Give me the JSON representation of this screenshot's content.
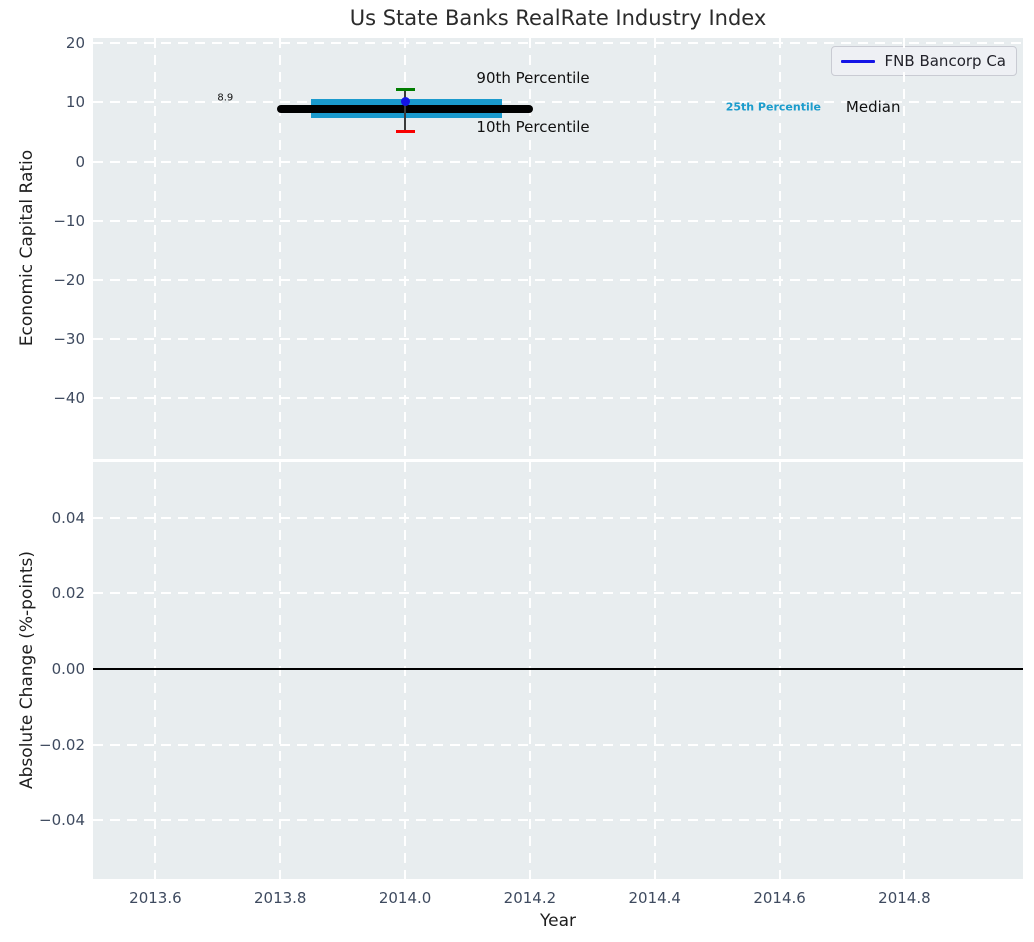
{
  "chart_data": [
    {
      "type": "line",
      "title": "Us State Banks RealRate Industry Index",
      "ylabel": "Economic Capital Ratio",
      "xlim": [
        2013.5,
        2014.99
      ],
      "ylim": [
        -50.3,
        20.9
      ],
      "yticks": [
        20,
        10,
        0,
        -10,
        -20,
        -30,
        -40
      ],
      "ytick_labels": [
        "20",
        "10",
        "0",
        "−10",
        "−20",
        "−30",
        "−40"
      ],
      "xgrid": [
        2013.6,
        2013.8,
        2014.0,
        2014.2,
        2014.4,
        2014.6,
        2014.8
      ],
      "grid": true,
      "legend": {
        "position": "upper right",
        "entries": [
          "FNB Bancorp Ca"
        ]
      },
      "median_line": {
        "label": "Median",
        "value": 8.9,
        "x_span": [
          2013.795,
          2014.205
        ],
        "color": "#000000"
      },
      "percentile_band": {
        "label": "25th Percentile",
        "x_span": [
          2013.85,
          2014.155
        ],
        "y_range": [
          7.3,
          10.6
        ],
        "color": "#1a9acd"
      },
      "error_bar": {
        "x": 2014.0,
        "line_color": "#3a3a3a",
        "high": {
          "label": "90th Percentile",
          "value": 12.2,
          "cap_color": "#007d00"
        },
        "low": {
          "label": "10th Percentile",
          "value": 5.1,
          "cap_color": "#f80000"
        }
      },
      "point": {
        "series": "FNB Bancorp Ca",
        "x": 2014.0,
        "y": 10.2,
        "color": "#1414e6"
      },
      "annotations": [
        {
          "text": "8.9",
          "x": 2013.712,
          "y": 10.8,
          "color": "#111111",
          "size": 10,
          "bold": false
        },
        {
          "text": "90th Percentile",
          "x": 2014.205,
          "y": 14.2,
          "color": "#111111",
          "size": 15,
          "bold": false
        },
        {
          "text": "10th Percentile",
          "x": 2014.205,
          "y": 5.9,
          "color": "#111111",
          "size": 15,
          "bold": false
        },
        {
          "text": "25th Percentile",
          "x": 2014.59,
          "y": 9.3,
          "color": "#1b9ccc",
          "size": 11,
          "bold": true
        },
        {
          "text": "Median",
          "x": 2014.75,
          "y": 9.3,
          "color": "#111111",
          "size": 15,
          "bold": false
        }
      ]
    },
    {
      "type": "line",
      "ylabel": "Absolute Change (%-points)",
      "xlabel": "Year",
      "xlim": [
        2013.5,
        2014.99
      ],
      "ylim": [
        -0.0556,
        0.0548
      ],
      "yticks": [
        0.04,
        0.02,
        0.0,
        -0.02,
        -0.04
      ],
      "ytick_labels": [
        "0.04",
        "0.02",
        "0.00",
        "−0.02",
        "−0.04"
      ],
      "xticks": [
        2013.6,
        2013.8,
        2014.0,
        2014.2,
        2014.4,
        2014.6,
        2014.8
      ],
      "xtick_labels": [
        "2013.6",
        "2013.8",
        "2014.0",
        "2014.2",
        "2014.4",
        "2014.6",
        "2014.8"
      ],
      "grid": true,
      "zero_line": {
        "value": 0.0,
        "color": "#000000"
      }
    }
  ],
  "style": {
    "plot_background": "#e8edef",
    "grid_color": "#ffffff",
    "tick_color": "#3e4a5f",
    "text_color": "#1e1e1e"
  }
}
